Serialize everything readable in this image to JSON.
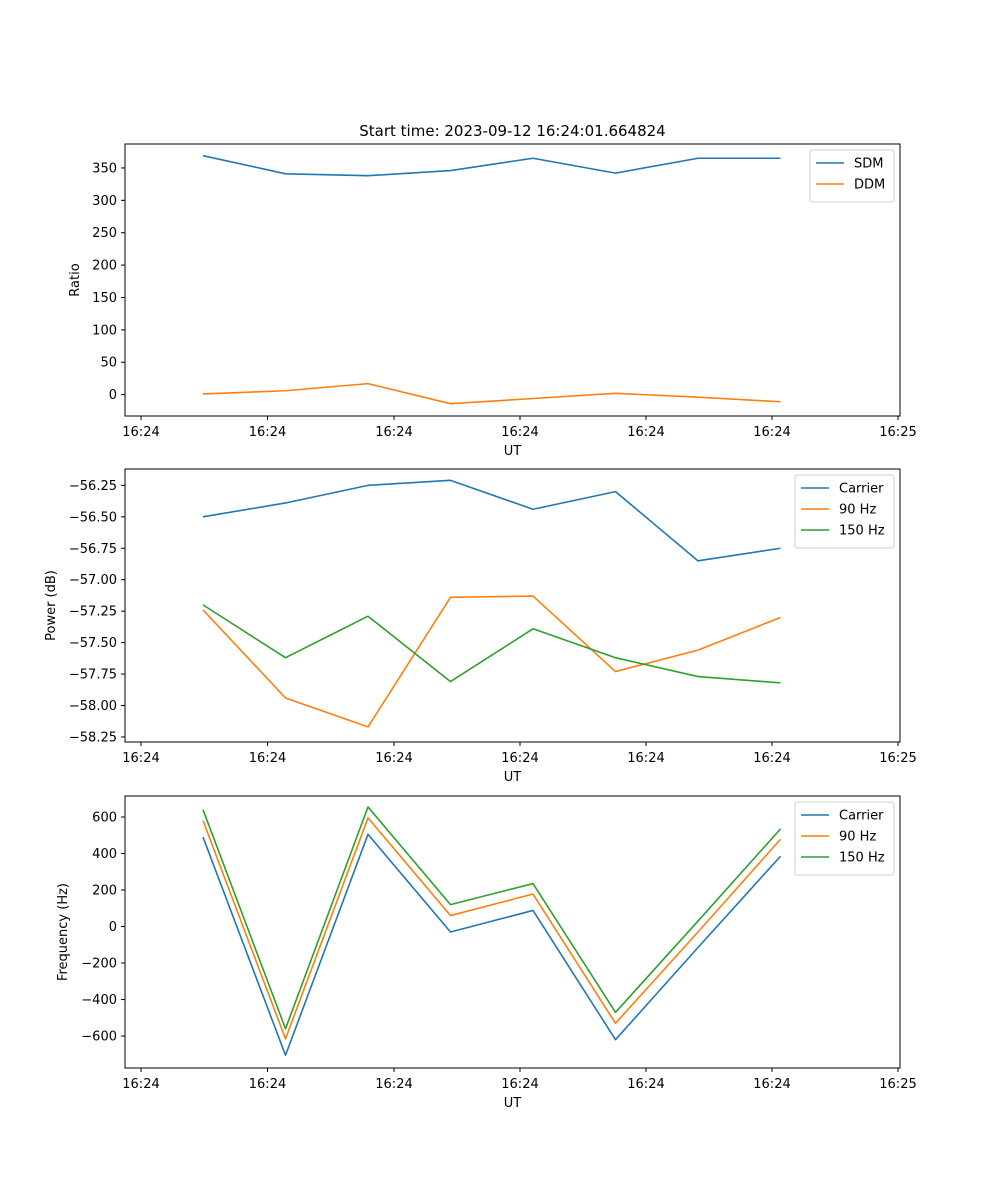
{
  "title": "Start time: 2023-09-12 16:24:01.664824",
  "colors": {
    "blue": "#1f77b4",
    "orange": "#ff7f0e",
    "green": "#2ca02c"
  },
  "chart_data": [
    {
      "type": "line",
      "xlabel": "UT",
      "ylabel": "Ratio",
      "x_ticks": [
        "16:24",
        "16:24",
        "16:24",
        "16:24",
        "16:24",
        "16:24",
        "16:25"
      ],
      "y_ticks": [
        "0",
        "50",
        "100",
        "150",
        "200",
        "250",
        "300",
        "350"
      ],
      "ylim": [
        -33,
        387
      ],
      "legend_position": "top-right",
      "series": [
        {
          "name": "SDM",
          "color": "#1f77b4",
          "values": [
            369,
            341,
            338,
            346,
            365,
            342,
            365,
            365
          ]
        },
        {
          "name": "DDM",
          "color": "#ff7f0e",
          "values": [
            1,
            6,
            17,
            -14,
            -6,
            2,
            -4,
            -11
          ]
        }
      ]
    },
    {
      "type": "line",
      "xlabel": "UT",
      "ylabel": "Power (dB)",
      "x_ticks": [
        "16:24",
        "16:24",
        "16:24",
        "16:24",
        "16:24",
        "16:24",
        "16:25"
      ],
      "y_ticks": [
        "−56.25",
        "−56.50",
        "−56.75",
        "−57.00",
        "−57.25",
        "−57.50",
        "−57.75",
        "−58.00",
        "−58.25"
      ],
      "ylim": [
        -58.29,
        -56.12
      ],
      "legend_position": "top-right",
      "series": [
        {
          "name": "Carrier",
          "color": "#1f77b4",
          "values": [
            -56.5,
            -56.39,
            -56.25,
            -56.21,
            -56.44,
            -56.3,
            -56.85,
            -56.75
          ]
        },
        {
          "name": "90 Hz",
          "color": "#ff7f0e",
          "values": [
            -57.24,
            -57.94,
            -58.17,
            -57.14,
            -57.13,
            -57.73,
            -57.56,
            -57.3
          ]
        },
        {
          "name": "150 Hz",
          "color": "#2ca02c",
          "values": [
            -57.2,
            -57.62,
            -57.29,
            -57.81,
            -57.39,
            -57.62,
            -57.77,
            -57.82
          ]
        }
      ]
    },
    {
      "type": "line",
      "xlabel": "UT",
      "ylabel": "Frequency (Hz)",
      "x_ticks": [
        "16:24",
        "16:24",
        "16:24",
        "16:24",
        "16:24",
        "16:24",
        "16:25"
      ],
      "y_ticks": [
        "600",
        "400",
        "200",
        "0",
        "−200",
        "−400",
        "−600"
      ],
      "ylim": [
        -775,
        715
      ],
      "legend_position": "top-right",
      "series": [
        {
          "name": "Carrier",
          "color": "#1f77b4",
          "values": [
            490,
            -705,
            505,
            -30,
            88,
            -620,
            -115,
            385
          ]
        },
        {
          "name": "90 Hz",
          "color": "#ff7f0e",
          "values": [
            580,
            -615,
            595,
            60,
            178,
            -530,
            -30,
            478
          ]
        },
        {
          "name": "150 Hz",
          "color": "#2ca02c",
          "values": [
            640,
            -560,
            655,
            120,
            235,
            -470,
            30,
            535
          ]
        }
      ]
    }
  ]
}
